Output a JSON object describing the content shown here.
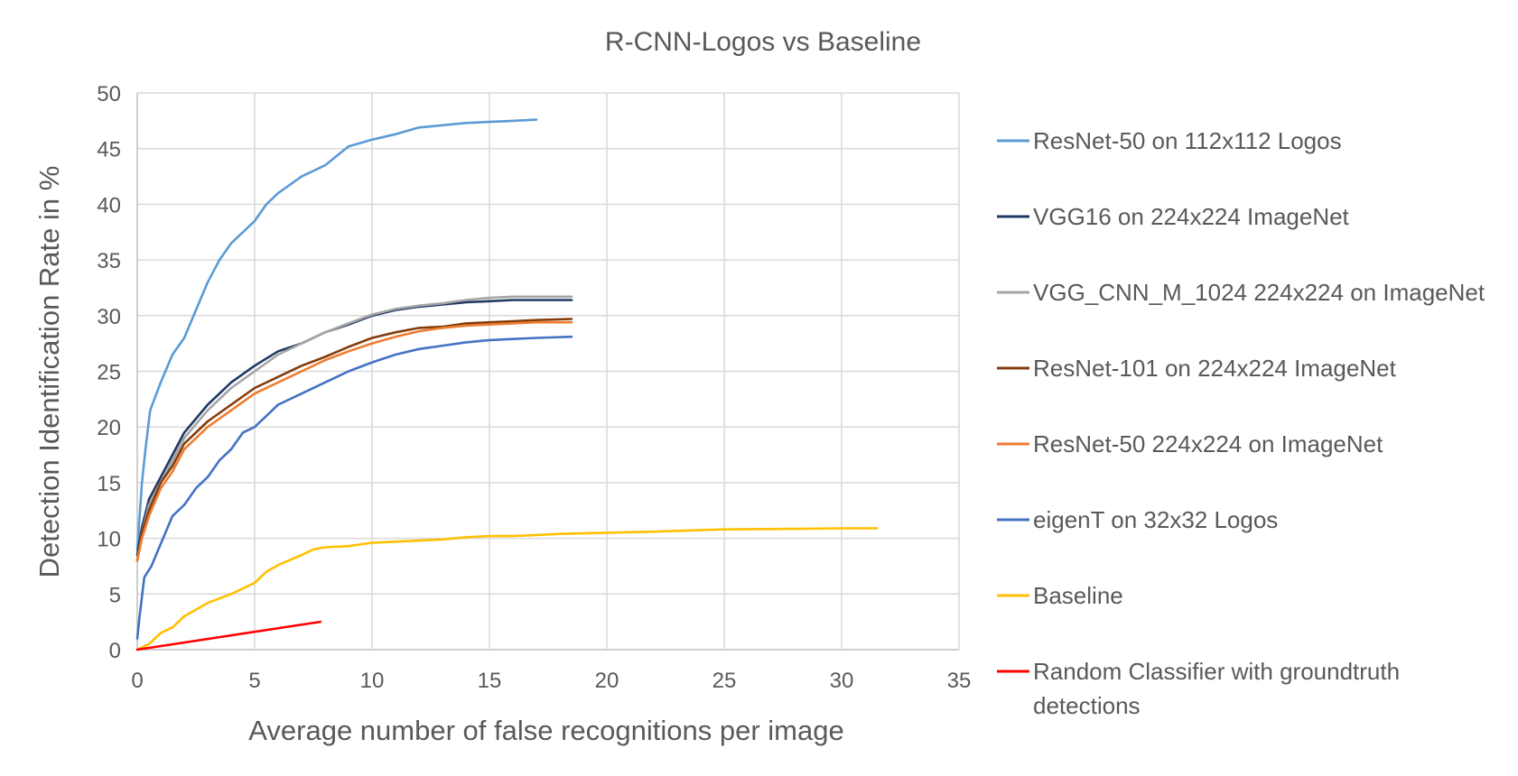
{
  "chart_data": {
    "type": "line",
    "title": "R-CNN-Logos vs Baseline",
    "xlabel": "Average number of false recognitions per image",
    "ylabel": "Detection Identification Rate in %",
    "xlim": [
      0,
      35
    ],
    "ylim": [
      0,
      50
    ],
    "xticks": [
      0,
      5,
      10,
      15,
      20,
      25,
      30,
      35
    ],
    "yticks": [
      0,
      5,
      10,
      15,
      20,
      25,
      30,
      35,
      40,
      45,
      50
    ],
    "grid": true,
    "legend_position": "right",
    "series": [
      {
        "name": "ResNet-50 on 112x112 Logos",
        "color": "#5b9bd5",
        "points": [
          [
            0,
            9
          ],
          [
            0.1,
            12
          ],
          [
            0.2,
            15
          ],
          [
            0.35,
            18
          ],
          [
            0.55,
            21.5
          ],
          [
            1,
            24
          ],
          [
            1.5,
            26.5
          ],
          [
            2,
            28
          ],
          [
            2.5,
            30.5
          ],
          [
            3,
            33
          ],
          [
            3.5,
            35
          ],
          [
            4,
            36.5
          ],
          [
            4.5,
            37.5
          ],
          [
            5,
            38.5
          ],
          [
            5.5,
            40
          ],
          [
            6,
            41
          ],
          [
            7,
            42.5
          ],
          [
            8,
            43.5
          ],
          [
            9,
            45.2
          ],
          [
            10,
            45.8
          ],
          [
            11,
            46.3
          ],
          [
            12,
            46.9
          ],
          [
            13,
            47.1
          ],
          [
            14,
            47.3
          ],
          [
            15,
            47.4
          ],
          [
            16,
            47.5
          ],
          [
            17,
            47.6
          ]
        ]
      },
      {
        "name": "VGG16 on 224x224 ImageNet",
        "color": "#1f3864",
        "points": [
          [
            0,
            8.5
          ],
          [
            0.2,
            11
          ],
          [
            0.5,
            13.5
          ],
          [
            1,
            15.5
          ],
          [
            1.5,
            17.5
          ],
          [
            2,
            19.5
          ],
          [
            3,
            22
          ],
          [
            4,
            24
          ],
          [
            5,
            25.5
          ],
          [
            6,
            26.8
          ],
          [
            7,
            27.5
          ],
          [
            8,
            28.5
          ],
          [
            9,
            29.2
          ],
          [
            10,
            30
          ],
          [
            11,
            30.5
          ],
          [
            12,
            30.8
          ],
          [
            13,
            31
          ],
          [
            14,
            31.2
          ],
          [
            15,
            31.3
          ],
          [
            16,
            31.4
          ],
          [
            17,
            31.4
          ],
          [
            18.5,
            31.4
          ]
        ]
      },
      {
        "name": "VGG_CNN_M_1024 224x224 on ImageNet",
        "color": "#a5a5a5",
        "points": [
          [
            0,
            8
          ],
          [
            0.2,
            10.5
          ],
          [
            0.5,
            13
          ],
          [
            1,
            15
          ],
          [
            1.5,
            17
          ],
          [
            2,
            19
          ],
          [
            3,
            21.5
          ],
          [
            4,
            23.5
          ],
          [
            5,
            25
          ],
          [
            6,
            26.5
          ],
          [
            7,
            27.5
          ],
          [
            8,
            28.5
          ],
          [
            9,
            29.3
          ],
          [
            10,
            30.1
          ],
          [
            11,
            30.6
          ],
          [
            12,
            30.9
          ],
          [
            13,
            31.1
          ],
          [
            14,
            31.4
          ],
          [
            15,
            31.6
          ],
          [
            16,
            31.7
          ],
          [
            17,
            31.7
          ],
          [
            18.5,
            31.7
          ]
        ]
      },
      {
        "name": "ResNet-101 on 224x224 ImageNet",
        "color": "#843c0c",
        "points": [
          [
            0,
            8
          ],
          [
            0.2,
            10.5
          ],
          [
            0.5,
            12.5
          ],
          [
            1,
            15
          ],
          [
            1.5,
            16.5
          ],
          [
            2,
            18.5
          ],
          [
            3,
            20.5
          ],
          [
            4,
            22
          ],
          [
            5,
            23.5
          ],
          [
            6,
            24.5
          ],
          [
            7,
            25.5
          ],
          [
            8,
            26.3
          ],
          [
            9,
            27.2
          ],
          [
            10,
            28
          ],
          [
            11,
            28.5
          ],
          [
            12,
            28.9
          ],
          [
            13,
            29
          ],
          [
            14,
            29.3
          ],
          [
            15,
            29.4
          ],
          [
            16,
            29.5
          ],
          [
            17,
            29.6
          ],
          [
            18.5,
            29.7
          ]
        ]
      },
      {
        "name": "ResNet-50 224x224 on ImageNet",
        "color": "#ed7d31",
        "points": [
          [
            0,
            8
          ],
          [
            0.2,
            10
          ],
          [
            0.5,
            12
          ],
          [
            1,
            14.5
          ],
          [
            1.5,
            16
          ],
          [
            2,
            18
          ],
          [
            3,
            20
          ],
          [
            4,
            21.5
          ],
          [
            5,
            23
          ],
          [
            6,
            24
          ],
          [
            7,
            25
          ],
          [
            8,
            26
          ],
          [
            9,
            26.8
          ],
          [
            10,
            27.5
          ],
          [
            11,
            28.1
          ],
          [
            12,
            28.6
          ],
          [
            13,
            28.9
          ],
          [
            14,
            29.1
          ],
          [
            15,
            29.2
          ],
          [
            16,
            29.3
          ],
          [
            17,
            29.4
          ],
          [
            18.5,
            29.4
          ]
        ]
      },
      {
        "name": "eigenT on 32x32 Logos",
        "color": "#4472c4",
        "points": [
          [
            0,
            1
          ],
          [
            0.1,
            3
          ],
          [
            0.3,
            6.5
          ],
          [
            0.6,
            7.5
          ],
          [
            1,
            9.5
          ],
          [
            1.5,
            12
          ],
          [
            2,
            13
          ],
          [
            2.5,
            14.5
          ],
          [
            3,
            15.5
          ],
          [
            3.5,
            17
          ],
          [
            4,
            18
          ],
          [
            4.5,
            19.5
          ],
          [
            5,
            20
          ],
          [
            5.5,
            21
          ],
          [
            6,
            22
          ],
          [
            7,
            23
          ],
          [
            8,
            24
          ],
          [
            9,
            25
          ],
          [
            10,
            25.8
          ],
          [
            11,
            26.5
          ],
          [
            12,
            27
          ],
          [
            13,
            27.3
          ],
          [
            14,
            27.6
          ],
          [
            15,
            27.8
          ],
          [
            16,
            27.9
          ],
          [
            17,
            28
          ],
          [
            18.5,
            28.1
          ]
        ]
      },
      {
        "name": "Baseline",
        "color": "#ffc000",
        "points": [
          [
            0,
            0
          ],
          [
            0.5,
            0.5
          ],
          [
            1,
            1.5
          ],
          [
            1.5,
            2
          ],
          [
            2,
            3
          ],
          [
            2.5,
            3.6
          ],
          [
            3,
            4.2
          ],
          [
            4,
            5
          ],
          [
            5,
            6
          ],
          [
            5.5,
            7
          ],
          [
            6,
            7.6
          ],
          [
            7,
            8.5
          ],
          [
            7.5,
            9
          ],
          [
            8,
            9.2
          ],
          [
            9,
            9.3
          ],
          [
            10,
            9.6
          ],
          [
            11,
            9.7
          ],
          [
            12,
            9.8
          ],
          [
            13,
            9.9
          ],
          [
            14,
            10.1
          ],
          [
            15,
            10.2
          ],
          [
            16,
            10.2
          ],
          [
            17,
            10.3
          ],
          [
            18,
            10.4
          ],
          [
            20,
            10.5
          ],
          [
            22,
            10.6
          ],
          [
            25,
            10.8
          ],
          [
            28,
            10.85
          ],
          [
            30,
            10.9
          ],
          [
            31.5,
            10.9
          ]
        ]
      },
      {
        "name": "Random Classifier with groundtruth detections",
        "color": "#ff0000",
        "points": [
          [
            0,
            0
          ],
          [
            7.8,
            2.5
          ]
        ]
      }
    ]
  }
}
